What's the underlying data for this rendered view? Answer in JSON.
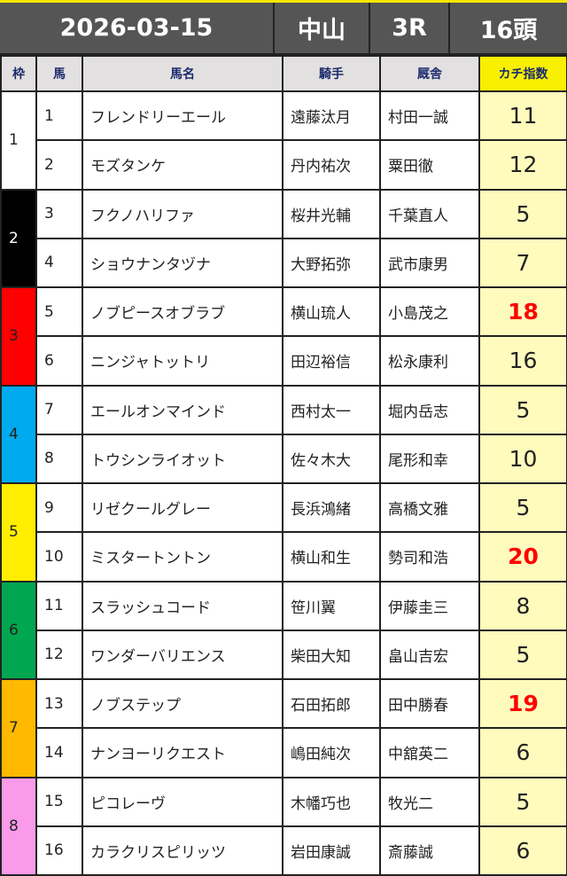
{
  "header": {
    "date": "2026-03-15",
    "venue": "中山",
    "race": "3R",
    "count": "16頭"
  },
  "columns": [
    "枠",
    "馬",
    "馬名",
    "騎手",
    "厩舎",
    "カチ指数"
  ],
  "frame_colors": {
    "1": "#ffffff",
    "2": "#000000",
    "3": "#ff0000",
    "4": "#00aaee",
    "5": "#ffee00",
    "6": "#00a650",
    "7": "#ffb900",
    "8": "#f99be9"
  },
  "highlight_color": "#ff0000",
  "rows": [
    {
      "frame": "1",
      "num": "1",
      "name": "フレンドリーエール",
      "jockey": "遠藤汰月",
      "trainer": "村田一誠",
      "index": "11",
      "hot": false
    },
    {
      "frame": "1",
      "num": "2",
      "name": "モズタンケ",
      "jockey": "丹内祐次",
      "trainer": "粟田徹",
      "index": "12",
      "hot": false
    },
    {
      "frame": "2",
      "num": "3",
      "name": "フクノハリファ",
      "jockey": "桜井光輔",
      "trainer": "千葉直人",
      "index": "5",
      "hot": false
    },
    {
      "frame": "2",
      "num": "4",
      "name": "ショウナンタヅナ",
      "jockey": "大野拓弥",
      "trainer": "武市康男",
      "index": "7",
      "hot": false
    },
    {
      "frame": "3",
      "num": "5",
      "name": "ノブピースオブラブ",
      "jockey": "横山琉人",
      "trainer": "小島茂之",
      "index": "18",
      "hot": true
    },
    {
      "frame": "3",
      "num": "6",
      "name": "ニンジャトットリ",
      "jockey": "田辺裕信",
      "trainer": "松永康利",
      "index": "16",
      "hot": false
    },
    {
      "frame": "4",
      "num": "7",
      "name": "エールオンマインド",
      "jockey": "西村太一",
      "trainer": "堀内岳志",
      "index": "5",
      "hot": false
    },
    {
      "frame": "4",
      "num": "8",
      "name": "トウシンライオット",
      "jockey": "佐々木大",
      "trainer": "尾形和幸",
      "index": "10",
      "hot": false
    },
    {
      "frame": "5",
      "num": "9",
      "name": "リゼクールグレー",
      "jockey": "長浜鴻緒",
      "trainer": "高橋文雅",
      "index": "5",
      "hot": false
    },
    {
      "frame": "5",
      "num": "10",
      "name": "ミスタートントン",
      "jockey": "横山和生",
      "trainer": "勢司和浩",
      "index": "20",
      "hot": true
    },
    {
      "frame": "6",
      "num": "11",
      "name": "スラッシュコード",
      "jockey": "笹川翼",
      "trainer": "伊藤圭三",
      "index": "8",
      "hot": false
    },
    {
      "frame": "6",
      "num": "12",
      "name": "ワンダーバリエンス",
      "jockey": "柴田大知",
      "trainer": "畠山吉宏",
      "index": "5",
      "hot": false
    },
    {
      "frame": "7",
      "num": "13",
      "name": "ノブステップ",
      "jockey": "石田拓郎",
      "trainer": "田中勝春",
      "index": "19",
      "hot": true
    },
    {
      "frame": "7",
      "num": "14",
      "name": "ナンヨーリクエスト",
      "jockey": "嶋田純次",
      "trainer": "中舘英二",
      "index": "6",
      "hot": false
    },
    {
      "frame": "8",
      "num": "15",
      "name": "ピコレーヴ",
      "jockey": "木幡巧也",
      "trainer": "牧光二",
      "index": "5",
      "hot": false
    },
    {
      "frame": "8",
      "num": "16",
      "name": "カラクリスピリッツ",
      "jockey": "岩田康誠",
      "trainer": "斎藤誠",
      "index": "6",
      "hot": false
    }
  ]
}
